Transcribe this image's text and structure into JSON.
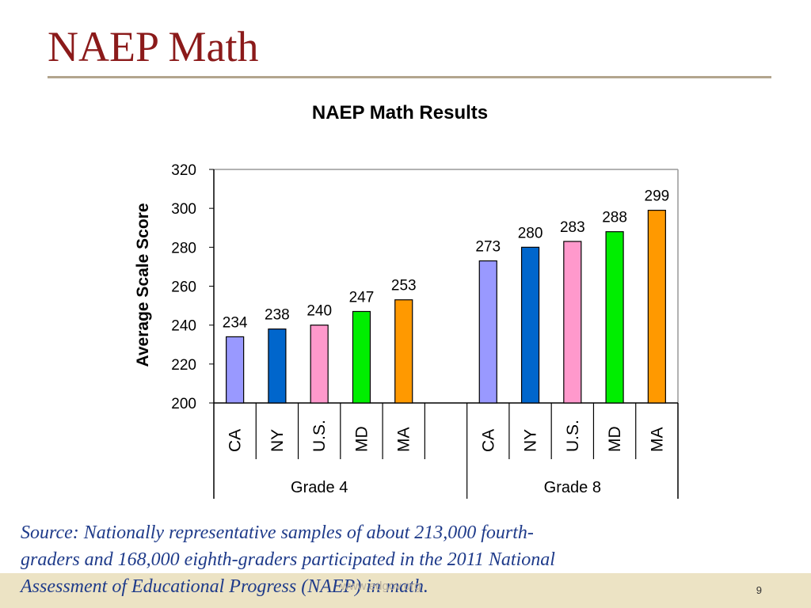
{
  "slide": {
    "title": "NAEP Math",
    "source": "Source: Nationally representative samples of about 213,000 fourth-graders and 168,000 eighth-graders participated in the 2011 National Assessment of Educational Progress (NAEP) in math.",
    "watermark": "www.edgov.org",
    "page_number": "9"
  },
  "colors": {
    "title": "#8b1a1a",
    "CA": "#9999ff",
    "NY": "#0066cc",
    "U.S.": "#ff99cc",
    "MD": "#00ee00",
    "MA": "#ff9900"
  },
  "chart_data": {
    "type": "bar",
    "title": "NAEP Math Results",
    "ylabel": "Average Scale Score",
    "xlabel": "",
    "ylim": [
      200,
      320
    ],
    "yticks": [
      200,
      220,
      240,
      260,
      280,
      300,
      320
    ],
    "grid": false,
    "groups": [
      {
        "name": "Grade 4",
        "categories": [
          "CA",
          "NY",
          "U.S.",
          "MD",
          "MA"
        ],
        "values": [
          234,
          238,
          240,
          247,
          253
        ]
      },
      {
        "name": "Grade 8",
        "categories": [
          "CA",
          "NY",
          "U.S.",
          "MD",
          "MA"
        ],
        "values": [
          273,
          280,
          283,
          288,
          299
        ]
      }
    ]
  }
}
